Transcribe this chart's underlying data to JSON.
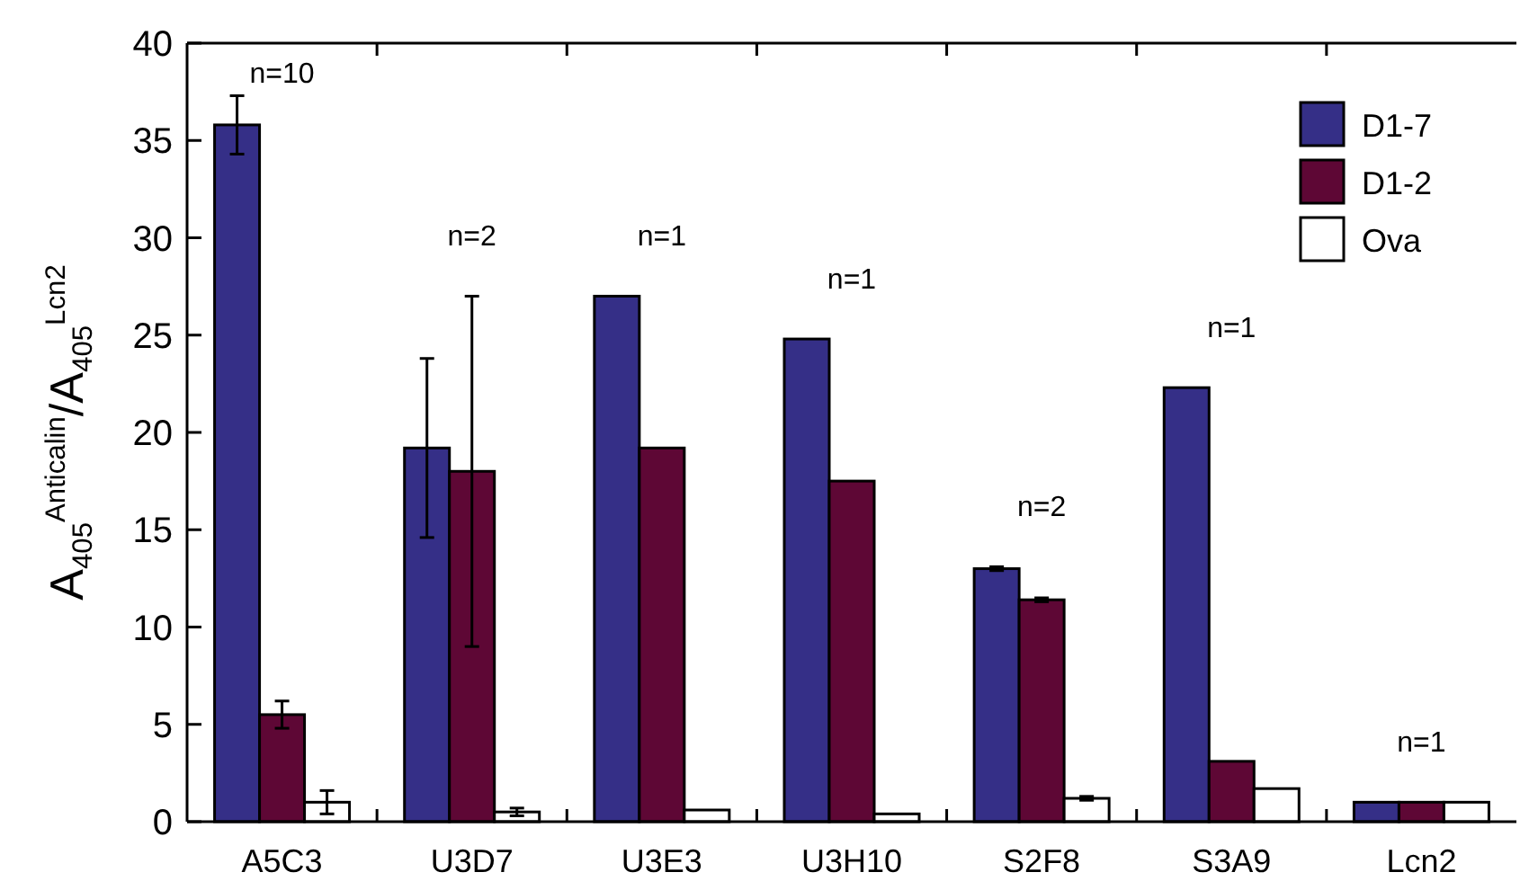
{
  "chart_data": {
    "type": "bar",
    "ylabel": "A$_{405}$$^{Anticalin}$/A$_{405}$$^{Lcn2}$",
    "categories": [
      "A5C3",
      "U3D7",
      "U3E3",
      "U3H10",
      "S2F8",
      "S3A9",
      "Lcn2"
    ],
    "series": [
      {
        "name": "D1-7",
        "color": "#352f87",
        "values": [
          35.8,
          19.2,
          27.0,
          24.8,
          13.0,
          22.3,
          1.0
        ],
        "errors": [
          1.5,
          4.6,
          null,
          null,
          0.1,
          null,
          null
        ]
      },
      {
        "name": "D1-2",
        "color": "#5e0735",
        "values": [
          5.5,
          18.0,
          19.2,
          17.5,
          11.4,
          3.1,
          1.0
        ],
        "errors": [
          0.7,
          9.0,
          null,
          null,
          0.1,
          null,
          null
        ]
      },
      {
        "name": "Ova",
        "color": "#ffffff",
        "values": [
          1.0,
          0.5,
          0.6,
          0.4,
          1.2,
          1.7,
          1.0
        ],
        "errors": [
          0.6,
          0.2,
          null,
          null,
          0.1,
          null,
          null
        ]
      }
    ],
    "ylim": [
      0,
      40
    ],
    "yticks": [
      0,
      5,
      10,
      15,
      20,
      25,
      30,
      35,
      40
    ],
    "grid": false,
    "legend": "top right",
    "annotations": [
      "n=10",
      "n=2",
      "n=1",
      "n=1",
      "n=2",
      "n=1",
      "n=1"
    ]
  }
}
